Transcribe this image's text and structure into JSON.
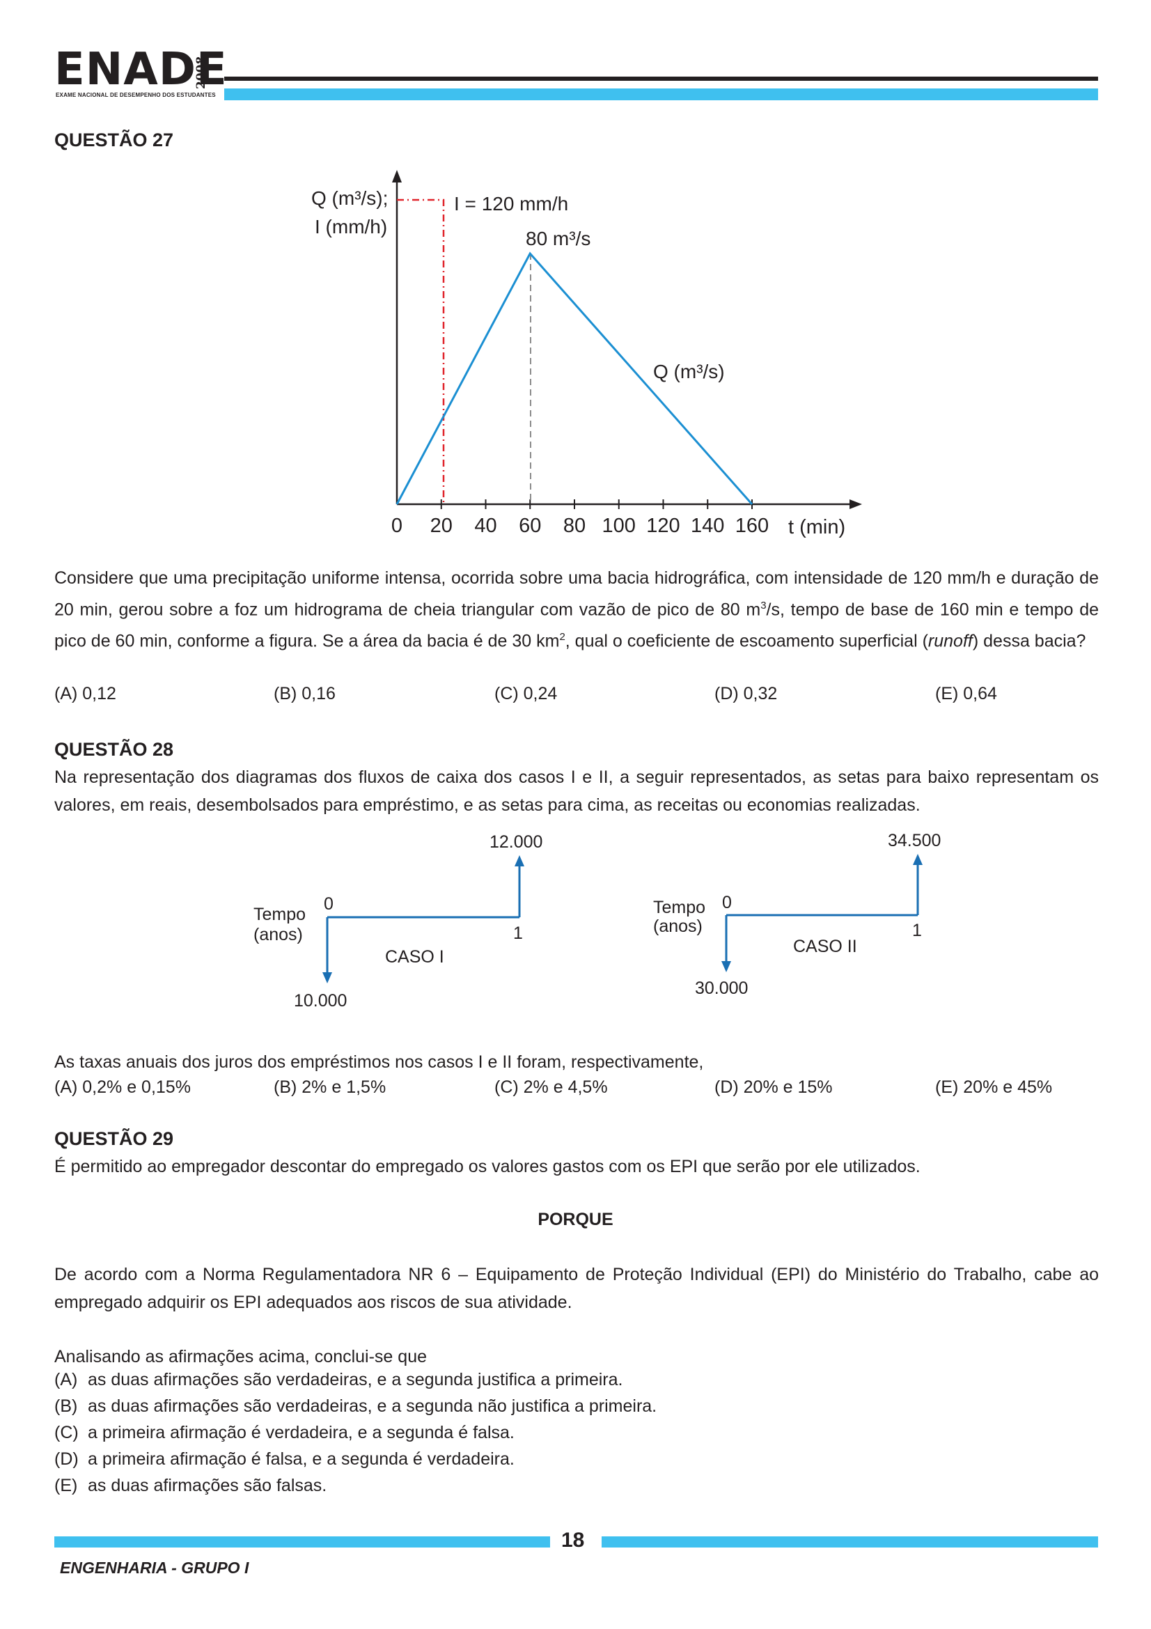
{
  "header": {
    "logo": "ENADE",
    "year": "2008",
    "subtitle": "EXAME NACIONAL DE DESEMPENHO DOS ESTUDANTES"
  },
  "q27": {
    "title": "QUESTÃO 27",
    "chart": {
      "y_axis_label_1": "Q (m³/s);",
      "y_axis_label_2": "I (mm/h)",
      "intensity_label": "I = 120 mm/h",
      "peak_label": "80 m³/s",
      "curve_label": "Q (m³/s)",
      "x_unit_label": "t  (min)",
      "x_ticks": [
        "0",
        "20",
        "40",
        "60",
        "80",
        "100",
        "120",
        "140",
        "160"
      ]
    },
    "text": "Considere que uma precipitação uniforme intensa, ocorrida sobre uma bacia hidrográfica, com intensidade de 120 mm/h e duração de 20 min, gerou sobre a foz um hidrograma de cheia triangular com vazão de pico de 80 m³/s,  tempo de base de 160 min e tempo de pico de 60 min, conforme a figura. Se a área da bacia é de 30 km², qual o coeficiente de escoamento superficial (runoff) dessa bacia?",
    "text_parts": {
      "p1": "Considere que uma precipitação uniforme intensa, ocorrida sobre uma bacia hidrográfica, com intensidade de 120 mm/h e duração de 20 min, gerou sobre a foz um hidrograma de cheia triangular com vazão de pico de 80 m",
      "sup1": "3",
      "p2": "/s,  tempo de base de 160 min e tempo de pico de 60 min, conforme a figura. Se a área da bacia é de 30 km",
      "sup2": "2",
      "p3": ", qual o coeficiente de escoamento superficial (",
      "italic": "runoff",
      "p4": ") dessa bacia?"
    },
    "options": [
      "(A)  0,12",
      "(B)  0,16",
      "(C)  0,24",
      "(D)  0,32",
      "(E)  0,64"
    ]
  },
  "q28": {
    "title": "QUESTÃO 28",
    "text": "Na representação dos diagramas dos fluxos de caixa dos casos I e II, a seguir representados, as setas para baixo representam os valores, em reais, desembolsados para empréstimo, e as setas para cima, as receitas ou economias realizadas.",
    "case1": {
      "time_label_1": "Tempo",
      "time_label_2": "(anos)",
      "t0": "0",
      "t1": "1",
      "name": "CASO I",
      "out_value": "10.000",
      "in_value": "12.000"
    },
    "case2": {
      "time_label_1": "Tempo",
      "time_label_2": "(anos)",
      "t0": "0",
      "t1": "1",
      "name": "CASO II",
      "out_value": "30.000",
      "in_value": "34.500"
    },
    "question": "As taxas anuais dos juros dos empréstimos nos casos I e II foram, respectivamente,",
    "options": [
      "(A)  0,2% e 0,15%",
      "(B)  2% e 1,5%",
      "(C)  2% e 4,5%",
      "(D)  20% e 15%",
      "(E)  20% e 45%"
    ]
  },
  "q29": {
    "title": "QUESTÃO 29",
    "statement1": "É permitido ao empregador descontar do empregado os valores gastos com os EPI que serão por ele utilizados.",
    "porque": "PORQUE",
    "statement2": "De acordo com a Norma Regulamentadora NR 6 – Equipamento de Proteção Individual (EPI) do Ministério do Trabalho, cabe ao empregado adquirir os EPI adequados aos riscos de sua atividade.",
    "lead": "Analisando as afirmações acima, conclui-se que",
    "options": [
      {
        "letter": "(A)",
        "text": "as duas afirmações são verdadeiras, e a segunda justifica a primeira."
      },
      {
        "letter": "(B)",
        "text": "as duas afirmações são verdadeiras, e a segunda não justifica a primeira."
      },
      {
        "letter": "(C)",
        "text": "a primeira afirmação é verdadeira, e a segunda é falsa."
      },
      {
        "letter": "(D)",
        "text": "a primeira afirmação é falsa, e a segunda é verdadeira."
      },
      {
        "letter": "(E)",
        "text": "as duas afirmações são falsas."
      }
    ]
  },
  "footer": {
    "page_number": "18",
    "course": "ENGENHARIA - GRUPO I"
  },
  "colors": {
    "accent_blue": "#3fc0ef",
    "curve_blue": "#1b8fd2",
    "arrow_blue": "#1a6fb3",
    "dash_red": "#e0242b"
  }
}
